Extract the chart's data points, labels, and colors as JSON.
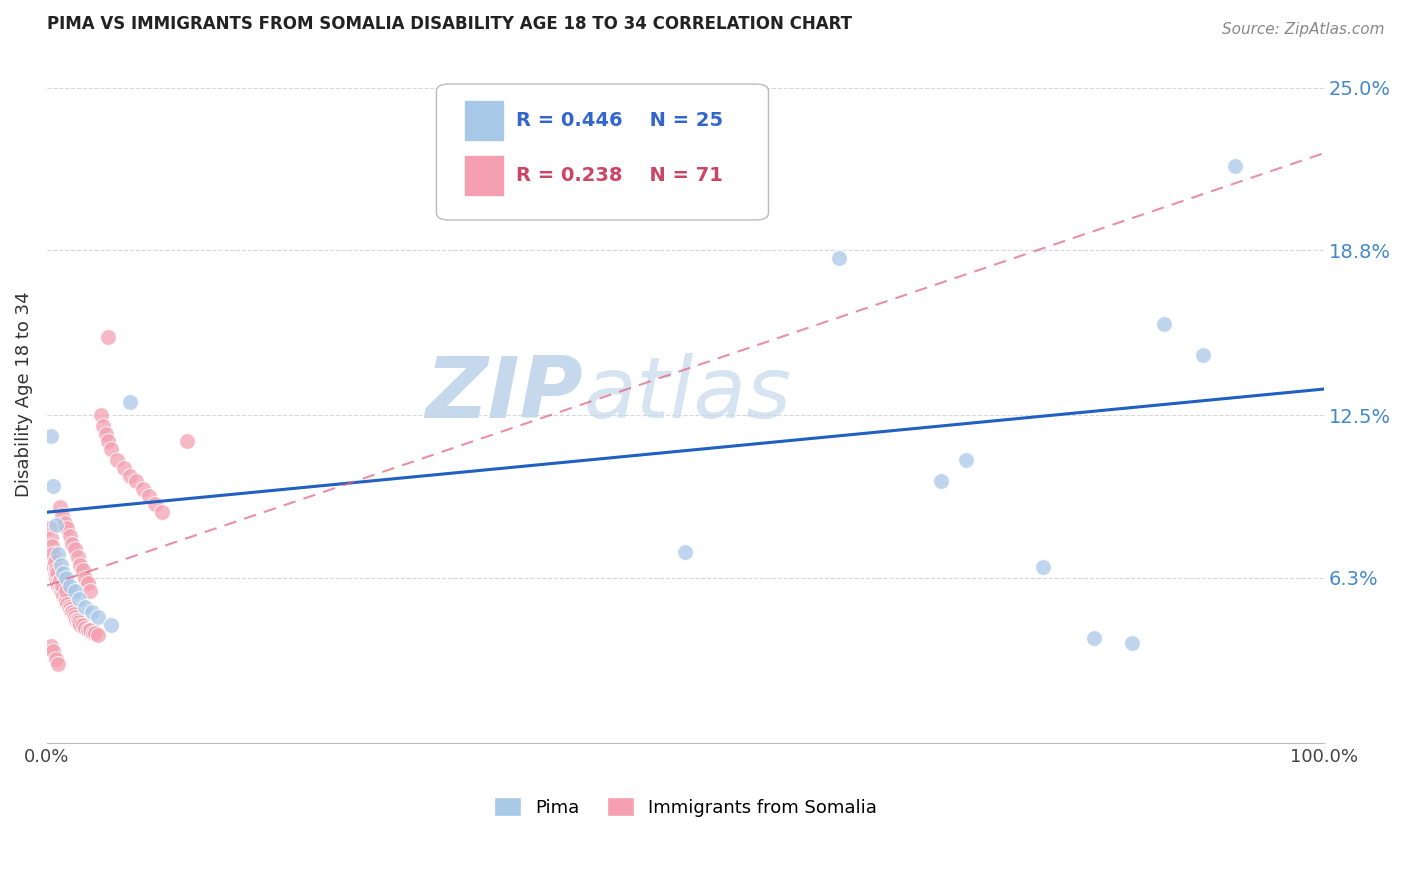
{
  "title": "PIMA VS IMMIGRANTS FROM SOMALIA DISABILITY AGE 18 TO 34 CORRELATION CHART",
  "source": "Source: ZipAtlas.com",
  "ylabel": "Disability Age 18 to 34",
  "xlim": [
    0,
    1.0
  ],
  "ylim": [
    0,
    0.266
  ],
  "xtick_labels": [
    "0.0%",
    "100.0%"
  ],
  "xtick_positions": [
    0.0,
    1.0
  ],
  "ytick_labels": [
    "6.3%",
    "12.5%",
    "18.8%",
    "25.0%"
  ],
  "ytick_positions": [
    0.063,
    0.125,
    0.188,
    0.25
  ],
  "pima_R": 0.446,
  "pima_N": 25,
  "somalia_R": 0.238,
  "somalia_N": 71,
  "pima_color": "#a8c8e8",
  "somalia_color": "#f4a0b0",
  "pima_line_color": "#2060c0",
  "somalia_line_color": "#e06080",
  "watermark_color": "#dce8f0",
  "legend_box_color": "#f0f4f8",
  "pima_label_color": "#3366cc",
  "somalia_label_color": "#cc4466",
  "right_tick_color": "#4488cc",
  "grid_color": "#d8d8d8",
  "pima_x": [
    0.003,
    0.005,
    0.007,
    0.009,
    0.011,
    0.013,
    0.015,
    0.018,
    0.022,
    0.025,
    0.03,
    0.035,
    0.04,
    0.05,
    0.065,
    0.5,
    0.62,
    0.7,
    0.72,
    0.78,
    0.82,
    0.85,
    0.875,
    0.905,
    0.93
  ],
  "pima_y": [
    0.117,
    0.098,
    0.083,
    0.072,
    0.068,
    0.065,
    0.063,
    0.06,
    0.058,
    0.055,
    0.052,
    0.05,
    0.048,
    0.045,
    0.13,
    0.073,
    0.185,
    0.1,
    0.108,
    0.067,
    0.04,
    0.038,
    0.16,
    0.148,
    0.22
  ],
  "somalia_x": [
    0.002,
    0.003,
    0.004,
    0.004,
    0.005,
    0.006,
    0.006,
    0.007,
    0.007,
    0.008,
    0.008,
    0.009,
    0.01,
    0.01,
    0.011,
    0.012,
    0.012,
    0.013,
    0.014,
    0.015,
    0.015,
    0.016,
    0.017,
    0.018,
    0.019,
    0.02,
    0.021,
    0.022,
    0.023,
    0.024,
    0.025,
    0.026,
    0.028,
    0.03,
    0.032,
    0.034,
    0.036,
    0.038,
    0.04,
    0.042,
    0.044,
    0.046,
    0.048,
    0.05,
    0.055,
    0.06,
    0.065,
    0.07,
    0.075,
    0.08,
    0.085,
    0.09,
    0.01,
    0.012,
    0.014,
    0.016,
    0.018,
    0.02,
    0.022,
    0.024,
    0.026,
    0.028,
    0.03,
    0.032,
    0.034,
    0.003,
    0.005,
    0.007,
    0.009,
    0.11,
    0.048
  ],
  "somalia_y": [
    0.082,
    0.078,
    0.075,
    0.068,
    0.072,
    0.069,
    0.065,
    0.066,
    0.063,
    0.065,
    0.061,
    0.06,
    0.059,
    0.062,
    0.058,
    0.057,
    0.06,
    0.056,
    0.055,
    0.054,
    0.058,
    0.053,
    0.052,
    0.051,
    0.05,
    0.05,
    0.049,
    0.048,
    0.047,
    0.047,
    0.046,
    0.045,
    0.045,
    0.044,
    0.043,
    0.043,
    0.042,
    0.042,
    0.041,
    0.125,
    0.121,
    0.118,
    0.115,
    0.112,
    0.108,
    0.105,
    0.102,
    0.1,
    0.097,
    0.094,
    0.091,
    0.088,
    0.09,
    0.087,
    0.084,
    0.082,
    0.079,
    0.076,
    0.074,
    0.071,
    0.068,
    0.066,
    0.063,
    0.061,
    0.058,
    0.037,
    0.035,
    0.032,
    0.03,
    0.115,
    0.155
  ]
}
